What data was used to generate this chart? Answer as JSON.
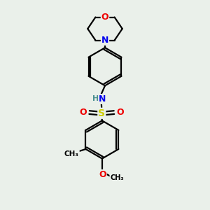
{
  "bg_color": "#eaf0ea",
  "atom_colors": {
    "C": "#000000",
    "N": "#0000ee",
    "O": "#ee0000",
    "S": "#cccc00",
    "H": "#4a9090"
  },
  "bond_color": "#000000",
  "bond_width": 1.6,
  "figsize": [
    3.0,
    3.0
  ],
  "dpi": 100
}
